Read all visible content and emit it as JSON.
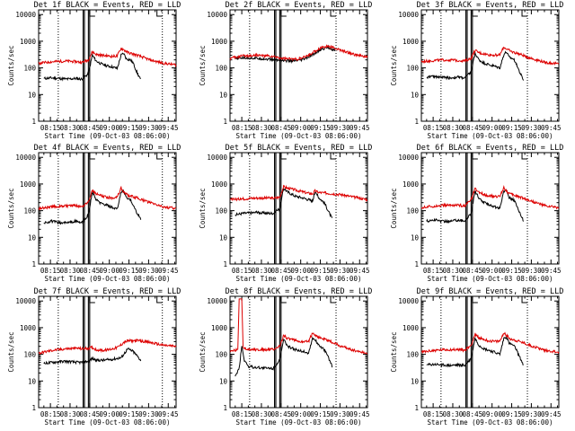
{
  "colors": {
    "events": "#000000",
    "lld": "#dd0000",
    "axes": "#000000",
    "background": "#ffffff"
  },
  "ylabel": "Counts/sec",
  "xlabel": "Start Time (09-Oct-03 08:06:00)",
  "y_tick_labels": [
    "1",
    "10",
    "100",
    "1000",
    "10000"
  ],
  "x_tick_labels": [
    "08:15",
    "08:30",
    "08:45",
    "09:00",
    "09:15",
    "09:30",
    "09:45"
  ],
  "chart_data": [
    {
      "type": "line",
      "title": "Det 1f BLACK = Events, RED = LLD",
      "xlabel": "Start Time (09-Oct-03 08:06:00)",
      "ylabel": "Counts/sec",
      "x_unit": "minutes after 08:06:00",
      "yscale": "log",
      "xlim": [
        0,
        105
      ],
      "ylim": [
        1,
        15000
      ],
      "vlines_dotted": [
        15,
        94.5
      ],
      "vlines_solid": [
        34,
        35,
        38,
        39
      ],
      "series": [
        {
          "name": "Events",
          "color": "#000000",
          "x": [
            4,
            10,
            16,
            22,
            28,
            33,
            38,
            41,
            44,
            48,
            52,
            56,
            60,
            63,
            65,
            67,
            70,
            72,
            75,
            78
          ],
          "y": [
            40,
            42,
            40,
            38,
            40,
            38,
            60,
            300,
            180,
            140,
            120,
            110,
            95,
            300,
            350,
            220,
            200,
            160,
            70,
            35
          ]
        },
        {
          "name": "LLD",
          "color": "#dd0000",
          "x": [
            0,
            10,
            20,
            30,
            33,
            38,
            41,
            44,
            50,
            56,
            60,
            63,
            65,
            68,
            75,
            85,
            95,
            105
          ],
          "y": [
            150,
            170,
            180,
            170,
            160,
            200,
            400,
            320,
            290,
            270,
            280,
            550,
            480,
            380,
            300,
            200,
            150,
            130
          ]
        }
      ]
    },
    {
      "type": "line",
      "title": "Det 2f BLACK = Events, RED = LLD",
      "xlabel": "Start Time (09-Oct-03 08:06:00)",
      "ylabel": "Counts/sec",
      "x_unit": "minutes after 08:06:00",
      "yscale": "log",
      "xlim": [
        0,
        105
      ],
      "ylim": [
        1,
        15000
      ],
      "vlines_dotted": [
        15,
        81
      ],
      "vlines_solid": [
        34,
        35,
        38,
        39
      ],
      "series": [
        {
          "name": "Events",
          "color": "#000000",
          "x": [
            4,
            10,
            20,
            30,
            40,
            50,
            55,
            60,
            65,
            70,
            75,
            80
          ],
          "y": [
            220,
            240,
            230,
            210,
            190,
            180,
            200,
            250,
            360,
            500,
            600,
            450
          ]
        },
        {
          "name": "LLD",
          "color": "#dd0000",
          "x": [
            0,
            10,
            20,
            30,
            40,
            50,
            55,
            60,
            65,
            70,
            75,
            80,
            85,
            95,
            105
          ],
          "y": [
            230,
            280,
            300,
            280,
            230,
            210,
            230,
            300,
            420,
            600,
            650,
            550,
            450,
            320,
            250
          ]
        }
      ]
    },
    {
      "type": "line",
      "title": "Det 3f BLACK = Events, RED = LLD",
      "xlabel": "Start Time (09-Oct-03 08:06:00)",
      "ylabel": "Counts/sec",
      "x_unit": "minutes after 08:06:00",
      "yscale": "log",
      "xlim": [
        0,
        105
      ],
      "ylim": [
        1,
        15000
      ],
      "vlines_dotted": [
        15,
        81
      ],
      "vlines_solid": [
        34,
        35,
        38,
        39
      ],
      "series": [
        {
          "name": "Events",
          "color": "#000000",
          "x": [
            4,
            10,
            16,
            22,
            28,
            33,
            38,
            41,
            44,
            48,
            52,
            56,
            60,
            63,
            65,
            67,
            70,
            72,
            75,
            78
          ],
          "y": [
            45,
            48,
            45,
            42,
            45,
            42,
            70,
            350,
            200,
            150,
            130,
            115,
            100,
            320,
            400,
            250,
            220,
            170,
            70,
            35
          ]
        },
        {
          "name": "LLD",
          "color": "#dd0000",
          "x": [
            0,
            10,
            20,
            30,
            33,
            38,
            41,
            44,
            50,
            56,
            60,
            63,
            65,
            68,
            75,
            85,
            95,
            105
          ],
          "y": [
            170,
            190,
            200,
            190,
            180,
            230,
            450,
            370,
            320,
            300,
            310,
            600,
            520,
            420,
            330,
            220,
            160,
            140
          ]
        }
      ]
    },
    {
      "type": "line",
      "title": "Det 4f BLACK = Events, RED = LLD",
      "xlabel": "Start Time (09-Oct-03 08:06:00)",
      "ylabel": "Counts/sec",
      "x_unit": "minutes after 08:06:00",
      "yscale": "log",
      "xlim": [
        0,
        105
      ],
      "ylim": [
        1,
        15000
      ],
      "vlines_dotted": [
        15,
        94.5
      ],
      "vlines_solid": [
        34,
        35,
        38,
        39
      ],
      "series": [
        {
          "name": "Events",
          "color": "#000000",
          "x": [
            4,
            10,
            16,
            22,
            28,
            33,
            38,
            41,
            44,
            48,
            52,
            56,
            60,
            63,
            65,
            67,
            70,
            72,
            75,
            78
          ],
          "y": [
            35,
            40,
            35,
            35,
            40,
            35,
            70,
            500,
            250,
            180,
            160,
            130,
            110,
            500,
            550,
            300,
            250,
            180,
            80,
            50
          ]
        },
        {
          "name": "LLD",
          "color": "#dd0000",
          "x": [
            0,
            10,
            20,
            30,
            33,
            38,
            41,
            44,
            50,
            56,
            60,
            63,
            65,
            68,
            75,
            85,
            95,
            105
          ],
          "y": [
            120,
            140,
            150,
            150,
            140,
            220,
            600,
            420,
            330,
            300,
            330,
            700,
            500,
            380,
            300,
            200,
            140,
            120
          ]
        }
      ]
    },
    {
      "type": "line",
      "title": "Det 5f BLACK = Events, RED = LLD",
      "xlabel": "Start Time (09-Oct-03 08:06:00)",
      "ylabel": "Counts/sec",
      "x_unit": "minutes after 08:06:00",
      "yscale": "log",
      "xlim": [
        0,
        105
      ],
      "ylim": [
        1,
        15000
      ],
      "vlines_dotted": [
        15,
        81
      ],
      "vlines_solid": [
        34,
        35,
        38,
        39
      ],
      "series": [
        {
          "name": "Events",
          "color": "#000000",
          "x": [
            4,
            10,
            20,
            30,
            33,
            38,
            41,
            44,
            50,
            56,
            60,
            63,
            65,
            68,
            72,
            75,
            78
          ],
          "y": [
            70,
            80,
            85,
            80,
            80,
            120,
            700,
            500,
            350,
            300,
            260,
            230,
            500,
            300,
            200,
            100,
            50
          ]
        },
        {
          "name": "LLD",
          "color": "#dd0000",
          "x": [
            0,
            10,
            20,
            30,
            33,
            38,
            41,
            44,
            50,
            56,
            60,
            63,
            65,
            68,
            75,
            85,
            95,
            105
          ],
          "y": [
            260,
            280,
            300,
            300,
            290,
            320,
            800,
            700,
            600,
            500,
            450,
            430,
            550,
            480,
            450,
            400,
            320,
            260
          ]
        }
      ]
    },
    {
      "type": "line",
      "title": "Det 6f BLACK = Events, RED = LLD",
      "xlabel": "Start Time (09-Oct-03 08:06:00)",
      "ylabel": "Counts/sec",
      "x_unit": "minutes after 08:06:00",
      "yscale": "log",
      "xlim": [
        0,
        105
      ],
      "ylim": [
        1,
        15000
      ],
      "vlines_dotted": [
        15,
        81
      ],
      "vlines_solid": [
        34,
        35,
        38,
        39
      ],
      "series": [
        {
          "name": "Events",
          "color": "#000000",
          "x": [
            4,
            10,
            16,
            22,
            28,
            33,
            38,
            41,
            44,
            48,
            52,
            56,
            60,
            63,
            65,
            67,
            70,
            72,
            75,
            78
          ],
          "y": [
            40,
            45,
            40,
            40,
            45,
            40,
            80,
            550,
            280,
            200,
            170,
            140,
            120,
            550,
            600,
            320,
            260,
            190,
            90,
            40
          ]
        },
        {
          "name": "LLD",
          "color": "#dd0000",
          "x": [
            0,
            10,
            20,
            30,
            33,
            38,
            41,
            44,
            50,
            56,
            60,
            63,
            65,
            68,
            75,
            85,
            95,
            105
          ],
          "y": [
            130,
            150,
            160,
            160,
            150,
            250,
            650,
            480,
            380,
            330,
            350,
            750,
            550,
            420,
            330,
            220,
            150,
            130
          ]
        }
      ]
    },
    {
      "type": "line",
      "title": "Det 7f BLACK = Events, RED = LLD",
      "xlabel": "Start Time (09-Oct-03 08:06:00)",
      "ylabel": "Counts/sec",
      "x_unit": "minutes after 08:06:00",
      "yscale": "log",
      "xlim": [
        0,
        105
      ],
      "ylim": [
        1,
        15000
      ],
      "vlines_dotted": [
        15,
        94.5
      ],
      "vlines_solid": [
        34,
        35,
        38,
        39
      ],
      "series": [
        {
          "name": "Events",
          "color": "#000000",
          "x": [
            4,
            10,
            20,
            30,
            33,
            38,
            41,
            44,
            50,
            56,
            60,
            63,
            65,
            68,
            72,
            75,
            78
          ],
          "y": [
            45,
            50,
            55,
            50,
            50,
            55,
            70,
            60,
            60,
            65,
            70,
            75,
            100,
            160,
            130,
            90,
            60
          ]
        },
        {
          "name": "LLD",
          "color": "#dd0000",
          "x": [
            0,
            10,
            20,
            30,
            33,
            38,
            41,
            44,
            50,
            56,
            60,
            63,
            65,
            68,
            75,
            85,
            95,
            105
          ],
          "y": [
            110,
            140,
            160,
            170,
            160,
            170,
            180,
            150,
            140,
            160,
            180,
            230,
            280,
            320,
            330,
            280,
            220,
            200
          ]
        }
      ]
    },
    {
      "type": "line",
      "title": "Det 8f BLACK = Events, RED = LLD",
      "xlabel": "Start Time (09-Oct-03 08:06:00)",
      "ylabel": "Counts/sec",
      "x_unit": "minutes after 08:06:00",
      "yscale": "log",
      "xlim": [
        0,
        105
      ],
      "ylim": [
        1,
        15000
      ],
      "vlines_dotted": [
        15,
        81
      ],
      "vlines_solid": [
        34,
        35,
        38,
        39
      ],
      "series": [
        {
          "name": "Events",
          "color": "#000000",
          "x": [
            4,
            7,
            9,
            11,
            14,
            20,
            30,
            33,
            38,
            41,
            44,
            50,
            56,
            60,
            63,
            65,
            68,
            72,
            75,
            78
          ],
          "y": [
            15,
            30,
            200,
            60,
            35,
            32,
            30,
            30,
            60,
            350,
            200,
            150,
            130,
            110,
            400,
            350,
            220,
            150,
            80,
            35
          ]
        },
        {
          "name": "LLD",
          "color": "#dd0000",
          "x": [
            0,
            6,
            7,
            8,
            9,
            10,
            11,
            20,
            30,
            33,
            38,
            41,
            44,
            50,
            56,
            60,
            63,
            65,
            68,
            75,
            85,
            95,
            105
          ],
          "y": [
            130,
            150,
            12000,
            12000,
            12000,
            180,
            160,
            150,
            150,
            150,
            200,
            500,
            400,
            330,
            290,
            300,
            650,
            550,
            420,
            330,
            200,
            140,
            110
          ]
        }
      ]
    },
    {
      "type": "line",
      "title": "Det 9f BLACK = Events, RED = LLD",
      "xlabel": "Start Time (09-Oct-03 08:06:00)",
      "ylabel": "Counts/sec",
      "x_unit": "minutes after 08:06:00",
      "yscale": "log",
      "xlim": [
        0,
        105
      ],
      "ylim": [
        1,
        15000
      ],
      "vlines_dotted": [
        15,
        81
      ],
      "vlines_solid": [
        34,
        35,
        38,
        39
      ],
      "series": [
        {
          "name": "Events",
          "color": "#000000",
          "x": [
            4,
            10,
            16,
            22,
            28,
            33,
            38,
            41,
            44,
            48,
            52,
            56,
            60,
            63,
            65,
            67,
            70,
            72,
            75,
            78
          ],
          "y": [
            40,
            42,
            40,
            38,
            40,
            38,
            70,
            400,
            220,
            160,
            140,
            120,
            100,
            400,
            450,
            260,
            220,
            170,
            80,
            40
          ]
        },
        {
          "name": "LLD",
          "color": "#dd0000",
          "x": [
            0,
            10,
            20,
            30,
            33,
            38,
            41,
            44,
            50,
            56,
            60,
            63,
            65,
            68,
            75,
            85,
            95,
            105
          ],
          "y": [
            120,
            140,
            150,
            150,
            140,
            220,
            550,
            420,
            330,
            300,
            310,
            650,
            500,
            380,
            300,
            200,
            140,
            120
          ]
        }
      ]
    }
  ]
}
